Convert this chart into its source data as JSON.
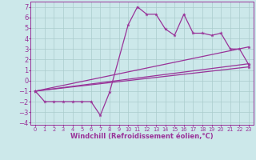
{
  "background_color": "#cce8ea",
  "grid_color": "#aacccc",
  "line_color": "#993399",
  "xlim": [
    -0.5,
    23.5
  ],
  "ylim": [
    -4.2,
    7.5
  ],
  "xlabel": "Windchill (Refroidissement éolien,°C)",
  "xticks": [
    0,
    1,
    2,
    3,
    4,
    5,
    6,
    7,
    8,
    9,
    10,
    11,
    12,
    13,
    14,
    15,
    16,
    17,
    18,
    19,
    20,
    21,
    22,
    23
  ],
  "yticks": [
    -4,
    -3,
    -2,
    -1,
    0,
    1,
    2,
    3,
    4,
    5,
    6,
    7
  ],
  "line1_x": [
    0,
    1,
    2,
    3,
    4,
    5,
    6,
    7,
    8,
    10,
    11,
    12,
    13,
    14,
    15,
    16,
    17,
    18,
    19,
    20,
    21,
    22,
    23
  ],
  "line1_y": [
    -1,
    -2,
    -2,
    -2,
    -2,
    -2,
    -2,
    -3.3,
    -1.1,
    5.3,
    7.0,
    6.3,
    6.3,
    4.9,
    4.3,
    6.3,
    4.5,
    4.5,
    4.3,
    4.5,
    3.0,
    3.0,
    1.5
  ],
  "line2_x": [
    0,
    23
  ],
  "line2_y": [
    -1,
    3.2
  ],
  "line3_x": [
    0,
    23
  ],
  "line3_y": [
    -1,
    1.6
  ],
  "line4_x": [
    0,
    23
  ],
  "line4_y": [
    -1,
    1.3
  ],
  "marker": "*",
  "markersize": 3.5,
  "linewidth": 0.9,
  "xlabel_fontsize": 6,
  "xtick_fontsize": 4.8,
  "ytick_fontsize": 6
}
